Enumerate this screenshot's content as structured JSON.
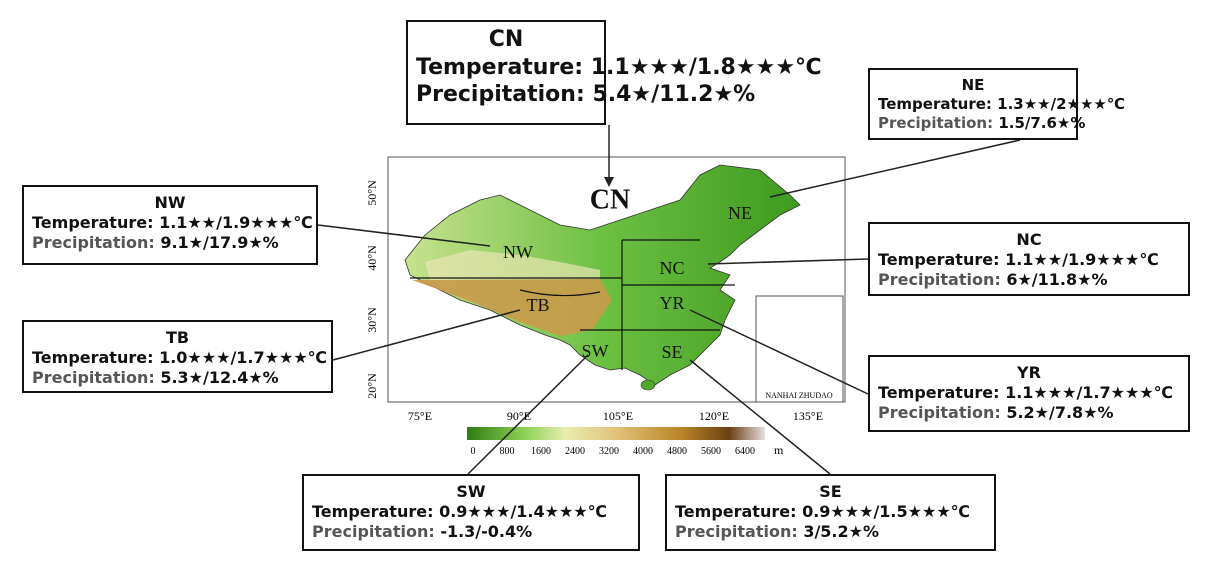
{
  "boxes": [
    {
      "region": "CN",
      "temperature_label": "Temperature:",
      "temperature": "1.1★★★/1.8★★★℃",
      "precipitation_label": "Precipitation:",
      "precipitation": "5.4★/11.2★%"
    },
    {
      "region": "NE",
      "temperature_label": "Temperature:",
      "temperature": "1.3★★/2★★★℃",
      "precipitation_label": "Precipitation:",
      "precipitation": "1.5/7.6★%"
    },
    {
      "region": "NW",
      "temperature_label": "Temperature:",
      "temperature": "1.1★★/1.9★★★℃",
      "precipitation_label": "Precipitation:",
      "precipitation": "9.1★/17.9★%"
    },
    {
      "region": "NC",
      "temperature_label": "Temperature:",
      "temperature": "1.1★★/1.9★★★℃",
      "precipitation_label": "Precipitation:",
      "precipitation": "6★/11.8★%"
    },
    {
      "region": "TB",
      "temperature_label": "Temperature:",
      "temperature": "1.0★★★/1.7★★★℃",
      "precipitation_label": "Precipitation:",
      "precipitation": "5.3★/12.4★%"
    },
    {
      "region": "YR",
      "temperature_label": "Temperature:",
      "temperature": "1.1★★★/1.7★★★℃",
      "precipitation_label": "Precipitation:",
      "precipitation": "5.2★/7.8★%"
    },
    {
      "region": "SW",
      "temperature_label": "Temperature:",
      "temperature": "0.9★★★/1.4★★★℃",
      "precipitation_label": "Precipitation:",
      "precipitation": "-1.3/-0.4%"
    },
    {
      "region": "SE",
      "temperature_label": "Temperature:",
      "temperature": "0.9★★★/1.5★★★℃",
      "precipitation_label": "Precipitation:",
      "precipitation": "3/5.2★%"
    }
  ],
  "map": {
    "region_labels": [
      "CN",
      "NE",
      "NW",
      "NC",
      "TB",
      "YR",
      "SW",
      "SE"
    ],
    "lat_ticks": [
      "50°N",
      "40°N",
      "30°N",
      "20°N"
    ],
    "lon_ticks": [
      "75°E",
      "90°E",
      "105°E",
      "120°E",
      "135°E"
    ],
    "colorbar_labels": [
      "0",
      "800",
      "1600",
      "2400",
      "3200",
      "4000",
      "4800",
      "5600",
      "6400"
    ],
    "colorbar_unit": "m",
    "inset_label": "NANHAI ZHUDAO"
  }
}
